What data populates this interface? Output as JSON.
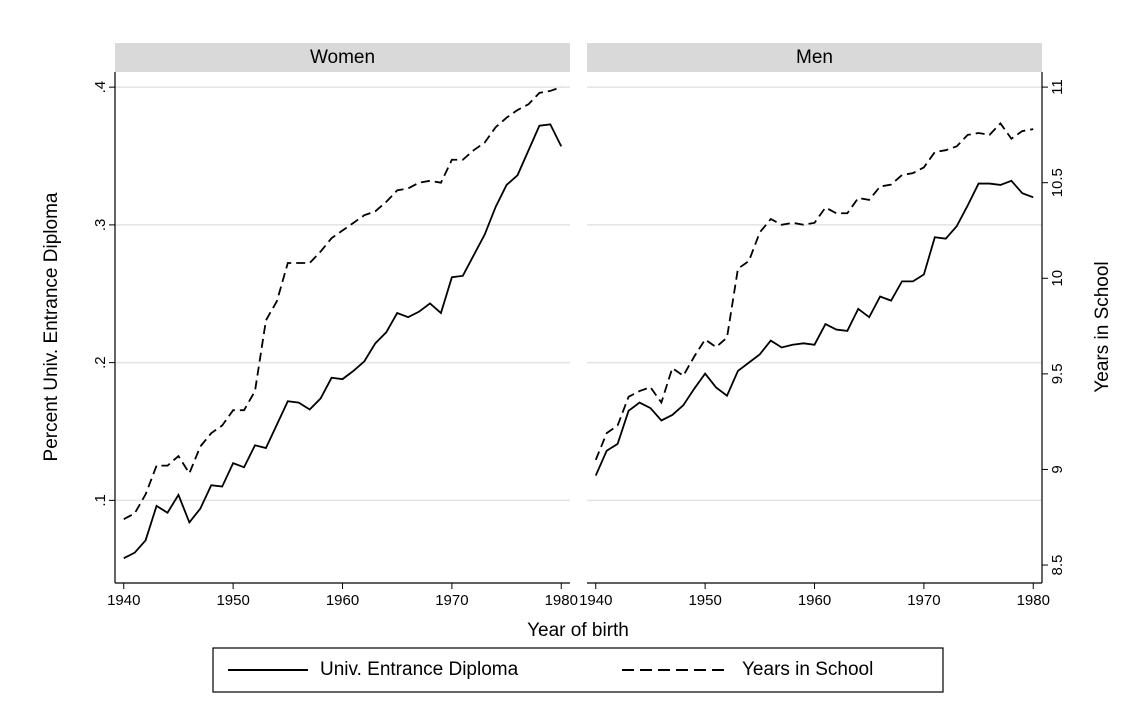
{
  "chart_data": [
    {
      "type": "line",
      "title": "Women",
      "x_label": "Year of birth",
      "y_label": "Percent Univ. Entrance Diploma",
      "x": [
        1940,
        1941,
        1942,
        1943,
        1944,
        1945,
        1946,
        1947,
        1948,
        1949,
        1950,
        1951,
        1952,
        1953,
        1954,
        1955,
        1956,
        1957,
        1958,
        1959,
        1960,
        1961,
        1962,
        1963,
        1964,
        1965,
        1966,
        1967,
        1968,
        1969,
        1970,
        1971,
        1972,
        1973,
        1974,
        1975,
        1976,
        1977,
        1978,
        1979,
        1980
      ],
      "xlim": [
        1939.2,
        1980.8
      ],
      "xticks": [
        1940,
        1950,
        1960,
        1970,
        1980
      ],
      "ylim": [
        0.04,
        0.411
      ],
      "yticks": [
        {
          "value": 0.1,
          "label": ".1"
        },
        {
          "value": 0.2,
          "label": ".2"
        },
        {
          "value": 0.3,
          "label": ".3"
        },
        {
          "value": 0.4,
          "label": ".4"
        }
      ],
      "grid": true,
      "series": [
        {
          "name": "Univ. Entrance Diploma",
          "color": "#000000",
          "line_style": "solid",
          "values": [
            0.058,
            0.062,
            0.071,
            0.096,
            0.091,
            0.104,
            0.084,
            0.094,
            0.111,
            0.11,
            0.127,
            0.124,
            0.14,
            0.138,
            0.155,
            0.172,
            0.171,
            0.166,
            0.174,
            0.189,
            0.188,
            0.194,
            0.201,
            0.214,
            0.222,
            0.236,
            0.233,
            0.237,
            0.243,
            0.236,
            0.262,
            0.263,
            0.278,
            0.293,
            0.313,
            0.329,
            0.336,
            0.354,
            0.372,
            0.373,
            0.357
          ]
        },
        {
          "name": "Years in School",
          "color": "#000000",
          "line_style": "dashed",
          "axis": "y2",
          "values": [
            8.74,
            8.77,
            8.87,
            9.02,
            9.02,
            9.07,
            8.98,
            9.12,
            9.19,
            9.23,
            9.31,
            9.31,
            9.41,
            9.78,
            9.88,
            10.08,
            10.08,
            10.08,
            10.14,
            10.21,
            10.25,
            10.29,
            10.33,
            10.35,
            10.4,
            10.46,
            10.47,
            10.5,
            10.51,
            10.5,
            10.62,
            10.62,
            10.67,
            10.71,
            10.79,
            10.84,
            10.88,
            10.91,
            10.97,
            10.98,
            11.0
          ]
        }
      ]
    },
    {
      "type": "line",
      "title": "Men",
      "y2_label": "Years in School",
      "x": [
        1940,
        1941,
        1942,
        1943,
        1944,
        1945,
        1946,
        1947,
        1948,
        1949,
        1950,
        1951,
        1952,
        1953,
        1954,
        1955,
        1956,
        1957,
        1958,
        1959,
        1960,
        1961,
        1962,
        1963,
        1964,
        1965,
        1966,
        1967,
        1968,
        1969,
        1970,
        1971,
        1972,
        1973,
        1974,
        1975,
        1976,
        1977,
        1978,
        1979,
        1980
      ],
      "xlim": [
        1939.2,
        1980.8
      ],
      "xticks": [
        1940,
        1950,
        1960,
        1970,
        1980
      ],
      "y2lim": [
        8.406,
        11.079
      ],
      "y2ticks": [
        8.5,
        9,
        9.5,
        10,
        10.5,
        11
      ],
      "series": [
        {
          "color": "#000000",
          "line_style": "solid",
          "values": [
            0.118,
            0.136,
            0.141,
            0.165,
            0.171,
            0.167,
            0.158,
            0.162,
            0.169,
            0.181,
            0.192,
            0.182,
            0.176,
            0.194,
            0.2,
            0.206,
            0.216,
            0.211,
            0.213,
            0.214,
            0.213,
            0.228,
            0.224,
            0.223,
            0.239,
            0.233,
            0.248,
            0.245,
            0.259,
            0.259,
            0.264,
            0.291,
            0.29,
            0.299,
            0.314,
            0.33,
            0.33,
            0.329,
            0.332,
            0.323,
            0.32
          ]
        },
        {
          "color": "#000000",
          "line_style": "dashed",
          "axis": "y2",
          "values": [
            9.05,
            9.19,
            9.23,
            9.38,
            9.41,
            9.43,
            9.35,
            9.53,
            9.49,
            9.59,
            9.68,
            9.64,
            9.69,
            10.05,
            10.09,
            10.24,
            10.31,
            10.28,
            10.29,
            10.28,
            10.29,
            10.37,
            10.34,
            10.34,
            10.42,
            10.41,
            10.48,
            10.49,
            10.54,
            10.55,
            10.58,
            10.66,
            10.67,
            10.69,
            10.75,
            10.76,
            10.75,
            10.81,
            10.73,
            10.77,
            10.78
          ]
        }
      ]
    }
  ]
}
